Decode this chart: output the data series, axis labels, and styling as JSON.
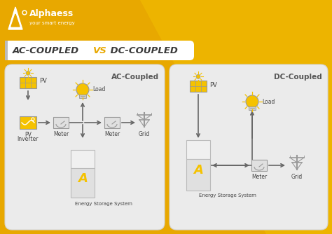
{
  "bg_color": "#E8A800",
  "bg_color2": "#F0B800",
  "panel_color": "#EBEBEB",
  "title_bg": "#FFFFFF",
  "title_text": "AC-COUPLED",
  "title_vs": "VS",
  "title_text2": "DC-COUPLED",
  "title_color": "#3a3a3a",
  "vs_color": "#E8A800",
  "ac_label": "AC-Coupled",
  "dc_label": "DC-Coupled",
  "brand": "Alphaess",
  "brand_sub": "your smart energy",
  "icon_yellow": "#F5C200",
  "icon_outline": "#999999",
  "arrow_color": "#666666",
  "text_color": "#444444",
  "ess_top": "#F0F0F0",
  "ess_bot": "#E0E0E0",
  "ess_line": "#BBBBBB"
}
